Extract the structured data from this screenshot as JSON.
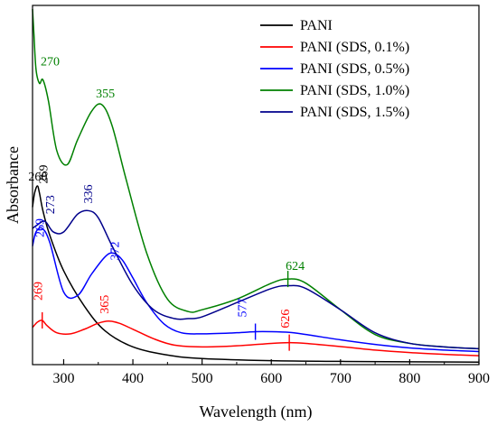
{
  "chart_data": {
    "type": "line",
    "xlabel": "Wavelength (nm)",
    "ylabel": "Absorbance",
    "xlim": [
      255,
      900
    ],
    "ylim": [
      0,
      1
    ],
    "x_ticks": [
      300,
      400,
      500,
      600,
      700,
      800,
      900
    ],
    "y_ticks_shown": false,
    "grid": false,
    "legend_position": "top-right",
    "series": [
      {
        "name": "PANI",
        "color": "#000000",
        "x": [
          255,
          258,
          262,
          265,
          270,
          280,
          300,
          330,
          360,
          400,
          450,
          500,
          600,
          700,
          800,
          900
        ],
        "y": [
          0.44,
          0.48,
          0.5,
          0.48,
          0.43,
          0.36,
          0.26,
          0.16,
          0.09,
          0.045,
          0.022,
          0.012,
          0.006,
          0.004,
          0.003,
          0.002
        ]
      },
      {
        "name": "PANI (SDS, 0.1%)",
        "color": "#ff0000",
        "x": [
          255,
          262,
          269,
          276,
          290,
          310,
          330,
          350,
          365,
          380,
          400,
          430,
          460,
          500,
          550,
          600,
          626,
          650,
          700,
          750,
          800,
          850,
          900
        ],
        "y": [
          0.1,
          0.115,
          0.12,
          0.105,
          0.085,
          0.082,
          0.095,
          0.112,
          0.118,
          0.112,
          0.095,
          0.068,
          0.05,
          0.045,
          0.048,
          0.055,
          0.057,
          0.055,
          0.046,
          0.036,
          0.029,
          0.024,
          0.02
        ]
      },
      {
        "name": "PANI (SDS, 0.5%)",
        "color": "#0000ff",
        "x": [
          255,
          260,
          269,
          280,
          300,
          320,
          340,
          360,
          372,
          385,
          400,
          420,
          445,
          470,
          500,
          550,
          577,
          600,
          626,
          650,
          700,
          750,
          800,
          850,
          900
        ],
        "y": [
          0.33,
          0.37,
          0.38,
          0.34,
          0.2,
          0.19,
          0.25,
          0.3,
          0.31,
          0.29,
          0.24,
          0.17,
          0.11,
          0.085,
          0.082,
          0.085,
          0.088,
          0.088,
          0.086,
          0.08,
          0.065,
          0.052,
          0.042,
          0.036,
          0.032
        ]
      },
      {
        "name": "PANI (SDS, 1.0%)",
        "color": "#008000",
        "x": [
          255,
          257,
          260,
          265,
          270,
          278,
          290,
          305,
          320,
          340,
          355,
          370,
          390,
          420,
          450,
          480,
          500,
          550,
          600,
          624,
          650,
          700,
          750,
          800,
          850,
          900
        ],
        "y": [
          1.0,
          0.93,
          0.83,
          0.79,
          0.8,
          0.74,
          0.6,
          0.56,
          0.63,
          0.71,
          0.73,
          0.67,
          0.52,
          0.31,
          0.18,
          0.145,
          0.15,
          0.18,
          0.225,
          0.237,
          0.225,
          0.15,
          0.08,
          0.055,
          0.045,
          0.04
        ]
      },
      {
        "name": "PANI (SDS, 1.5%)",
        "color": "#00008b",
        "x": [
          255,
          262,
          273,
          285,
          300,
          320,
          336,
          350,
          370,
          400,
          430,
          460,
          480,
          500,
          550,
          600,
          624,
          650,
          700,
          750,
          800,
          850,
          900
        ],
        "y": [
          0.38,
          0.39,
          0.4,
          0.37,
          0.37,
          0.42,
          0.43,
          0.41,
          0.33,
          0.22,
          0.15,
          0.125,
          0.125,
          0.13,
          0.17,
          0.21,
          0.218,
          0.21,
          0.15,
          0.085,
          0.055,
          0.045,
          0.04
        ]
      }
    ],
    "annotations": [
      {
        "text": "260",
        "series": "PANI",
        "x": 260
      },
      {
        "text": "269",
        "series": "PANI",
        "x": 269
      },
      {
        "text": "269",
        "series": "PANI (SDS, 0.1%)",
        "x": 269
      },
      {
        "text": "365",
        "series": "PANI (SDS, 0.1%)",
        "x": 365
      },
      {
        "text": "626",
        "series": "PANI (SDS, 0.1%)",
        "x": 626
      },
      {
        "text": "269",
        "series": "PANI (SDS, 0.5%)",
        "x": 269
      },
      {
        "text": "372",
        "series": "PANI (SDS, 0.5%)",
        "x": 372
      },
      {
        "text": "577",
        "series": "PANI (SDS, 0.5%)",
        "x": 577
      },
      {
        "text": "270",
        "series": "PANI (SDS, 1.0%)",
        "x": 270
      },
      {
        "text": "355",
        "series": "PANI (SDS, 1.0%)",
        "x": 355
      },
      {
        "text": "624",
        "series": "PANI (SDS, 1.0%)",
        "x": 624
      },
      {
        "text": "273",
        "series": "PANI (SDS, 1.5%)",
        "x": 273
      },
      {
        "text": "336",
        "series": "PANI (SDS, 1.5%)",
        "x": 336
      }
    ]
  }
}
